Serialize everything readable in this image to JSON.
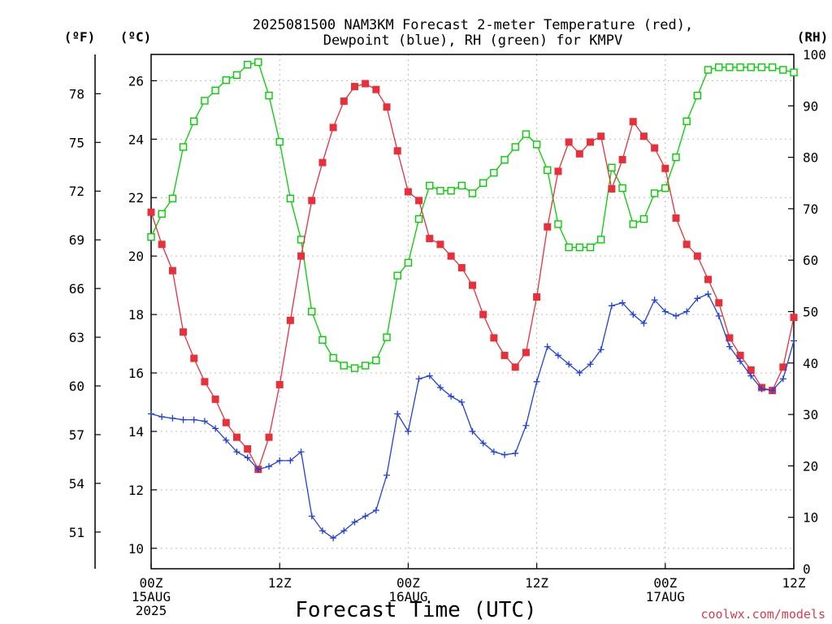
{
  "chart_data": {
    "type": "line",
    "title_lines": [
      "2025081500 NAM3KM Forecast 2-meter Temperature (red),",
      "Dewpoint (blue), RH (green) for KMPV"
    ],
    "xlabel": "Forecast Time (UTC)",
    "credit": "coolwx.com/models",
    "left_unit_f": "(ºF)",
    "left_unit_c": "(ºC)",
    "right_unit": "(RH)",
    "x_unit": "hours from 2025-08-15 00Z",
    "xlim": [
      0,
      60
    ],
    "ylim_c": [
      9.3,
      26.9
    ],
    "ylim_rh": [
      0,
      100
    ],
    "grid": true,
    "x_ticks": [
      {
        "x": 0,
        "lines": [
          "00Z",
          "15AUG",
          "2025"
        ]
      },
      {
        "x": 12,
        "lines": [
          "12Z"
        ]
      },
      {
        "x": 24,
        "lines": [
          "00Z",
          "16AUG"
        ]
      },
      {
        "x": 36,
        "lines": [
          "12Z"
        ]
      },
      {
        "x": 48,
        "lines": [
          "00Z",
          "17AUG"
        ]
      },
      {
        "x": 60,
        "lines": [
          "12Z"
        ]
      }
    ],
    "y_ticks_c": [
      10,
      12,
      14,
      16,
      18,
      20,
      22,
      24,
      26
    ],
    "y_ticks_f": [
      51,
      54,
      57,
      60,
      63,
      66,
      69,
      72,
      75,
      78
    ],
    "y_ticks_rh": [
      0,
      10,
      20,
      30,
      40,
      50,
      60,
      70,
      80,
      90,
      100
    ],
    "colors": {
      "temperature": "#e8303a",
      "dewpoint": "#2040e0",
      "rh": "#00d000",
      "grid": "#bbbbbb"
    },
    "series": [
      {
        "name": "Temperature",
        "unit": "C",
        "marker": "filled-square",
        "x": [
          0,
          1,
          2,
          3,
          4,
          5,
          6,
          7,
          8,
          9,
          10,
          11,
          12,
          13,
          14,
          15,
          16,
          17,
          18,
          19,
          20,
          21,
          22,
          23,
          24,
          25,
          26,
          27,
          28,
          29,
          30,
          31,
          32,
          33,
          34,
          35,
          36,
          37,
          38,
          39,
          40,
          41,
          42,
          43,
          44,
          45,
          46,
          47,
          48,
          49,
          50,
          51,
          52,
          53,
          54,
          55,
          56,
          57,
          58,
          59,
          60
        ],
        "values": [
          21.5,
          20.4,
          19.5,
          17.4,
          16.5,
          15.7,
          15.1,
          14.3,
          13.8,
          13.4,
          12.7,
          13.8,
          15.6,
          17.8,
          20.0,
          21.9,
          23.2,
          24.4,
          25.3,
          25.8,
          25.9,
          25.7,
          25.1,
          23.6,
          22.2,
          21.9,
          20.6,
          20.4,
          20.0,
          19.6,
          19.0,
          18.0,
          17.2,
          16.6,
          16.2,
          16.7,
          18.6,
          21.0,
          22.9,
          23.9,
          23.5,
          23.9,
          24.1,
          22.3,
          23.3,
          24.6,
          24.1,
          23.7,
          23.0,
          21.3,
          20.4,
          20.0,
          19.2,
          18.4,
          17.2,
          16.6,
          16.1,
          15.5,
          15.4,
          16.2,
          17.9
        ]
      },
      {
        "name": "Dewpoint",
        "unit": "C",
        "marker": "plus",
        "x": [
          0,
          1,
          2,
          3,
          4,
          5,
          6,
          7,
          8,
          9,
          10,
          11,
          12,
          13,
          14,
          15,
          16,
          17,
          18,
          19,
          20,
          21,
          22,
          23,
          24,
          25,
          26,
          27,
          28,
          29,
          30,
          31,
          32,
          33,
          34,
          35,
          36,
          37,
          38,
          39,
          40,
          41,
          42,
          43,
          44,
          45,
          46,
          47,
          48,
          49,
          50,
          51,
          52,
          53,
          54,
          55,
          56,
          57,
          58,
          59,
          60
        ],
        "values": [
          14.6,
          14.5,
          14.45,
          14.4,
          14.4,
          14.35,
          14.1,
          13.7,
          13.3,
          13.1,
          12.7,
          12.8,
          13.0,
          13.0,
          13.3,
          11.1,
          10.6,
          10.35,
          10.6,
          10.9,
          11.1,
          11.3,
          12.5,
          14.6,
          14.0,
          15.8,
          15.9,
          15.5,
          15.2,
          15.0,
          14.0,
          13.6,
          13.3,
          13.2,
          13.25,
          14.2,
          15.7,
          16.9,
          16.6,
          16.3,
          16.0,
          16.3,
          16.8,
          18.3,
          18.4,
          18.0,
          17.7,
          18.5,
          18.1,
          17.95,
          18.1,
          18.55,
          18.7,
          17.95,
          16.9,
          16.4,
          15.9,
          15.45,
          15.4,
          15.8,
          17.1
        ]
      },
      {
        "name": "RH",
        "unit": "%",
        "marker": "open-square",
        "x": [
          0,
          1,
          2,
          3,
          4,
          5,
          6,
          7,
          8,
          9,
          10,
          11,
          12,
          13,
          14,
          15,
          16,
          17,
          18,
          19,
          20,
          21,
          22,
          23,
          24,
          25,
          26,
          27,
          28,
          29,
          30,
          31,
          32,
          33,
          34,
          35,
          36,
          37,
          38,
          39,
          40,
          41,
          42,
          43,
          44,
          45,
          46,
          47,
          48,
          49,
          50,
          51,
          52,
          53,
          54,
          55,
          56,
          57,
          58,
          59,
          60
        ],
        "values": [
          64.5,
          69,
          72,
          82,
          87,
          91,
          93,
          95,
          96,
          98,
          98.5,
          92,
          83,
          72,
          64,
          50,
          44.5,
          41,
          39.5,
          39,
          39.5,
          40.5,
          45,
          57,
          59.5,
          68,
          74.5,
          73.5,
          73.5,
          74.5,
          73,
          75,
          77,
          79.5,
          82,
          84.5,
          82.5,
          77.5,
          67,
          62.5,
          62.5,
          62.5,
          64,
          78,
          74,
          67,
          68,
          73,
          74,
          80,
          87,
          92,
          97,
          97.5,
          97.5,
          97.5,
          97.5,
          97.5,
          97.5,
          97,
          96.5
        ]
      }
    ]
  }
}
